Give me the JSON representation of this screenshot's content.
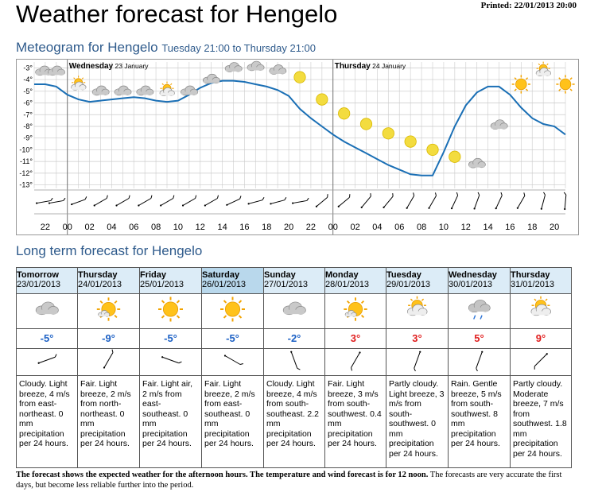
{
  "page": {
    "title": "Weather forecast for Hengelo",
    "printed": "Printed: 22/01/2013 20:00"
  },
  "meteogram": {
    "heading": "Meteogram for Hengelo",
    "period": "Tuesday 21:00 to Thursday 21:00"
  },
  "chart_data": {
    "type": "line",
    "title": "Meteogram for Hengelo",
    "day_labels": [
      {
        "day": "Wednesday",
        "date": "23 January"
      },
      {
        "day": "Thursday",
        "date": "24 January"
      }
    ],
    "x": [
      "21",
      "22",
      "23",
      "00",
      "01",
      "02",
      "03",
      "04",
      "05",
      "06",
      "07",
      "08",
      "09",
      "10",
      "11",
      "12",
      "13",
      "14",
      "15",
      "16",
      "17",
      "18",
      "19",
      "20",
      "21",
      "22",
      "23",
      "00",
      "01",
      "02",
      "03",
      "04",
      "05",
      "06",
      "07",
      "08",
      "09",
      "10",
      "11",
      "12",
      "13",
      "14",
      "15",
      "16",
      "17",
      "18",
      "19",
      "20",
      "21"
    ],
    "x_tick_labels": [
      "22",
      "00",
      "02",
      "04",
      "06",
      "08",
      "10",
      "12",
      "14",
      "16",
      "18",
      "20",
      "22",
      "00",
      "02",
      "04",
      "06",
      "08",
      "10",
      "12",
      "14",
      "16",
      "18",
      "20"
    ],
    "y_tick_labels": [
      "-3°",
      "-4°",
      "-5°",
      "-6°",
      "-7°",
      "-8°",
      "-9°",
      "-10°",
      "-11°",
      "-12°",
      "-13°"
    ],
    "ylim": [
      -13.3,
      -2.5
    ],
    "series": [
      {
        "values": [
          -4.4,
          -4.4,
          -4.6,
          -5.3,
          -5.7,
          -5.9,
          -5.8,
          -5.7,
          -5.6,
          -5.5,
          -5.6,
          -5.8,
          -5.9,
          -5.8,
          -5.3,
          -4.7,
          -4.3,
          -4.1,
          -4.1,
          -4.2,
          -4.4,
          -4.6,
          -4.9,
          -5.4,
          -6.5,
          -7.3,
          -8.0,
          -8.7,
          -9.3,
          -9.8,
          -10.3,
          -10.8,
          -11.3,
          -11.7,
          -12.1,
          -12.2,
          -12.2,
          -10.2,
          -8.0,
          -6.2,
          -5.1,
          -4.6,
          -4.6,
          -5.3,
          -6.4,
          -7.3,
          -7.8,
          -8.0,
          -8.7
        ]
      }
    ],
    "icons": [
      {
        "x": 0,
        "type": "cloudy",
        "y": -3.3
      },
      {
        "x": 1,
        "type": "cloudy",
        "y": -3.3
      },
      {
        "x": 2,
        "type": "partly-cloudy",
        "y": -4.5
      },
      {
        "x": 3,
        "type": "cloudy",
        "y": -5.0
      },
      {
        "x": 4,
        "type": "cloudy",
        "y": -5.0
      },
      {
        "x": 5,
        "type": "cloudy",
        "y": -5.0
      },
      {
        "x": 6,
        "type": "partly-cloudy",
        "y": -5.0
      },
      {
        "x": 7,
        "type": "cloudy",
        "y": -5.0
      },
      {
        "x": 8,
        "type": "cloudy",
        "y": -4.0
      },
      {
        "x": 9,
        "type": "cloudy",
        "y": -3.0
      },
      {
        "x": 10,
        "type": "cloudy",
        "y": -2.9
      },
      {
        "x": 11,
        "type": "cloudy",
        "y": -3.2
      },
      {
        "x": 12,
        "type": "moon",
        "y": -3.8
      },
      {
        "x": 13,
        "type": "moon",
        "y": -5.7
      },
      {
        "x": 14,
        "type": "moon",
        "y": -6.9
      },
      {
        "x": 15,
        "type": "moon",
        "y": -7.8
      },
      {
        "x": 16,
        "type": "moon",
        "y": -8.6
      },
      {
        "x": 17,
        "type": "moon",
        "y": -9.3
      },
      {
        "x": 18,
        "type": "moon",
        "y": -10.0
      },
      {
        "x": 19,
        "type": "moon",
        "y": -10.6
      },
      {
        "x": 20,
        "type": "cloudy",
        "y": -11.2
      },
      {
        "x": 21,
        "type": "cloudy",
        "y": -7.9
      },
      {
        "x": 22,
        "type": "sun",
        "y": -4.4
      },
      {
        "x": 23,
        "type": "partly-cloudy",
        "y": -3.3
      },
      {
        "x": 24,
        "type": "sun",
        "y": -4.4
      },
      {
        "x": 25,
        "type": "moon",
        "y": -6.3
      }
    ],
    "wind_arrows_deg": [
      80,
      80,
      70,
      60,
      60,
      60,
      60,
      60,
      60,
      65,
      75,
      75,
      80,
      50,
      50,
      40,
      40,
      30,
      30,
      25,
      20,
      25,
      30,
      15,
      5,
      355,
      345
    ]
  },
  "longterm": {
    "heading": "Long term forecast for Hengelo",
    "days": [
      {
        "day": "Tomorrow",
        "date": "23/01/2013",
        "icon": "cloudy",
        "temp": "-5°",
        "temp_class": "cold",
        "wind_deg": 70,
        "desc": "Cloudy. Light breeze, 4 m/s from east-northeast. 0 mm precipitation per 24 hours.",
        "highlight": false
      },
      {
        "day": "Thursday",
        "date": "24/01/2013",
        "icon": "partly-sunny",
        "temp": "-9°",
        "temp_class": "cold",
        "wind_deg": 30,
        "desc": "Fair. Light breeze, 2 m/s from north-northeast. 0 mm precipitation per 24 hours.",
        "highlight": false
      },
      {
        "day": "Friday",
        "date": "25/01/2013",
        "icon": "sun",
        "temp": "-5°",
        "temp_class": "cold",
        "wind_deg": 110,
        "desc": "Fair. Light air, 2 m/s from east-southeast. 0 mm precipitation per 24 hours.",
        "highlight": false
      },
      {
        "day": "Saturday",
        "date": "26/01/2013",
        "icon": "sun",
        "temp": "-5°",
        "temp_class": "cold",
        "wind_deg": 120,
        "desc": "Fair. Light breeze, 2 m/s from east-southeast. 0 mm precipitation per 24 hours.",
        "highlight": true
      },
      {
        "day": "Sunday",
        "date": "27/01/2013",
        "icon": "cloudy",
        "temp": "-2°",
        "temp_class": "cold",
        "wind_deg": 160,
        "desc": "Cloudy. Light breeze, 4 m/s from south-southeast. 2.2 mm precipitation per 24 hours.",
        "highlight": false
      },
      {
        "day": "Monday",
        "date": "28/01/2013",
        "icon": "partly-sunny",
        "temp": "3°",
        "temp_class": "warm",
        "wind_deg": 210,
        "desc": "Fair. Light breeze, 3 m/s from south-southwest. 0.4 mm precipitation per 24 hours.",
        "highlight": false
      },
      {
        "day": "Tuesday",
        "date": "29/01/2013",
        "icon": "partly-cloudy",
        "temp": "3°",
        "temp_class": "warm",
        "wind_deg": 200,
        "desc": "Partly cloudy. Light breeze, 3 m/s from south-southwest. 0 mm precipitation per 24 hours.",
        "highlight": false
      },
      {
        "day": "Wednesday",
        "date": "30/01/2013",
        "icon": "rain",
        "temp": "5°",
        "temp_class": "warm",
        "wind_deg": 200,
        "desc": "Rain. Gentle breeze, 5 m/s from south-southwest. 8 mm precipitation per 24 hours.",
        "highlight": false
      },
      {
        "day": "Thursday",
        "date": "31/01/2013",
        "icon": "partly-cloudy",
        "temp": "9°",
        "temp_class": "warm",
        "wind_deg": 225,
        "desc": "Partly cloudy. Moderate breeze, 7 m/s from southwest. 1.8 mm precipitation per 24 hours.",
        "highlight": false
      }
    ]
  },
  "footer": {
    "bold": "The forecast shows the expected weather for the afternoon hours. The temperature and wind forecast is for 12 noon.",
    "normal": " The forecasts are very accurate the first days, but become less reliable further into the period."
  }
}
